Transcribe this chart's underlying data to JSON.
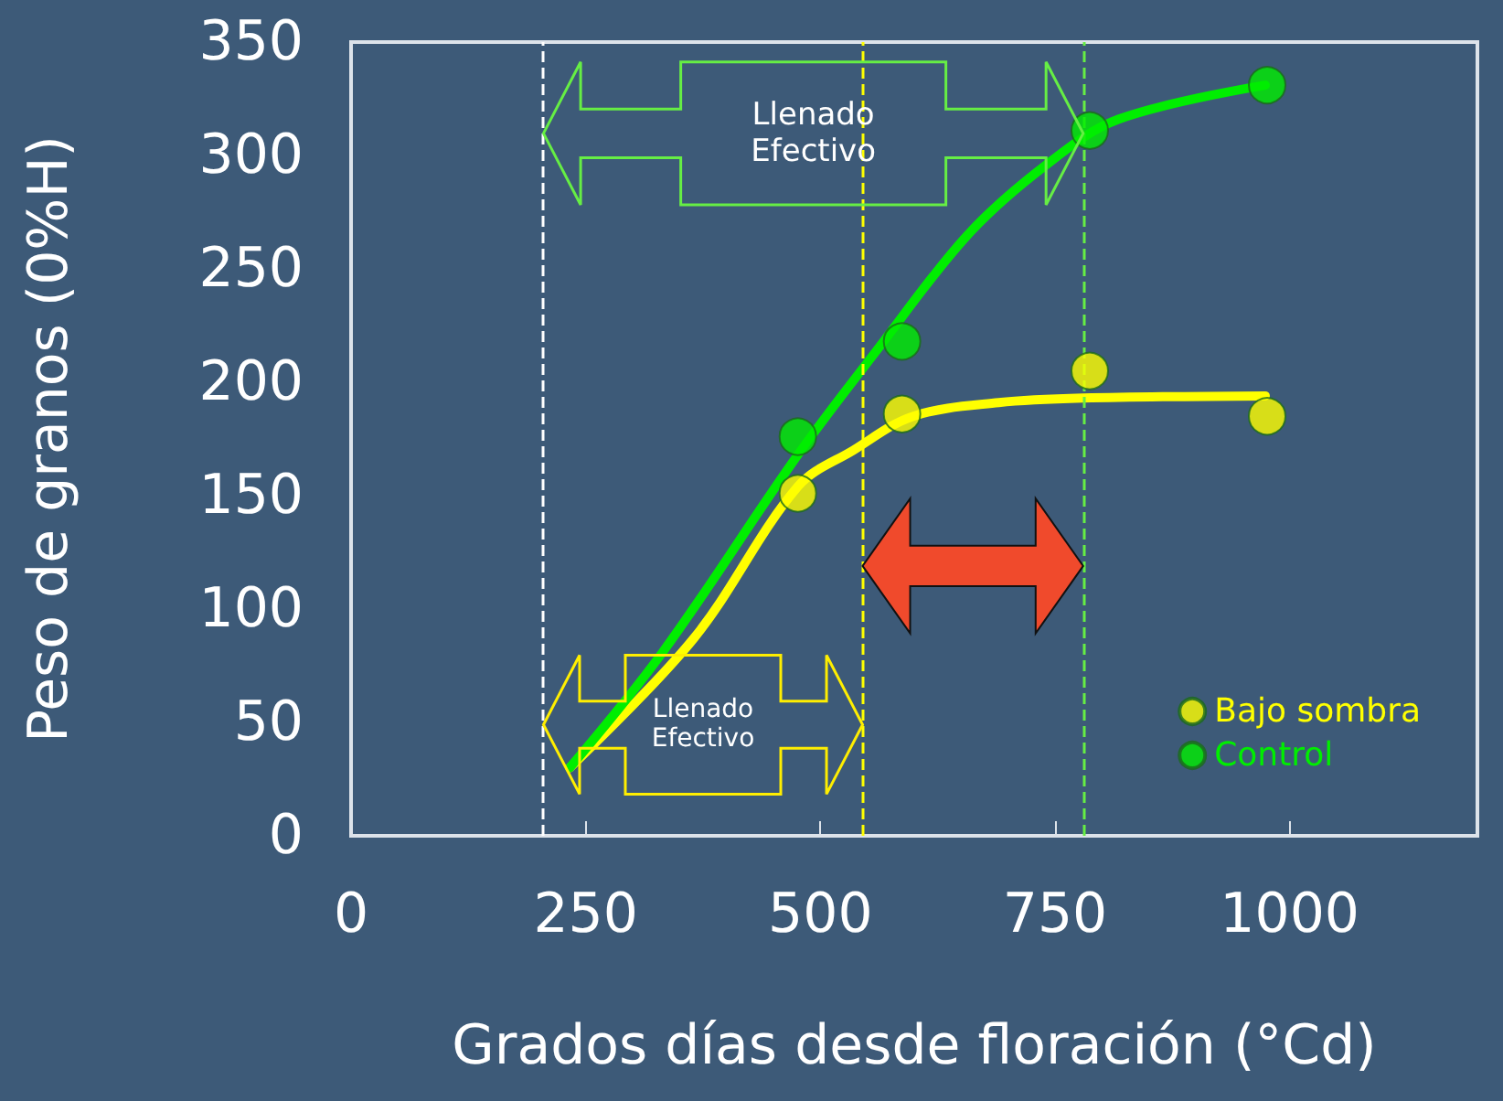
{
  "chart_data": {
    "type": "scatter",
    "xlabel": "Grados días desde floración (°Cd)",
    "ylabel": "Peso de granos (0%H)",
    "xlim": [
      0,
      1200
    ],
    "xticks": [
      0,
      250,
      500,
      750,
      1000
    ],
    "ylim": [
      0,
      350
    ],
    "yticks": [
      0,
      50,
      100,
      150,
      200,
      250,
      300,
      350
    ],
    "grid": false,
    "legend": "bottom right",
    "marker": "circle",
    "series": [
      {
        "name": "Bajo sombra",
        "color": "#ffff00",
        "x": [
          476,
          587,
          787,
          976
        ],
        "values": [
          151,
          186,
          205,
          185
        ]
      },
      {
        "name": "Control",
        "color": "#00ee00",
        "x": [
          476,
          587,
          787,
          976
        ],
        "values": [
          176,
          218,
          311,
          331
        ]
      },
      {
        "type": "line",
        "marker": "none",
        "color": "#ffff00",
        "x": [
          233,
          365,
          476,
          535,
          599,
          690,
          780,
          974
        ],
        "values": [
          30,
          87,
          154,
          170,
          185,
          191,
          193,
          194
        ]
      },
      {
        "type": "line",
        "marker": "none",
        "color": "#00ee00",
        "x": [
          233,
          332,
          476,
          560,
          657,
          741,
          818,
          974
        ],
        "values": [
          30,
          81,
          168,
          214,
          265,
          296,
          316,
          331
        ]
      }
    ],
    "ref_lines": [
      {
        "axis": "x",
        "value": 205,
        "color": "#ffffff",
        "line_style": "dashed"
      },
      {
        "axis": "x",
        "value": 545,
        "color": "#ffff00",
        "line_style": "dashed"
      },
      {
        "axis": "x",
        "value": 780,
        "color": "#66ee44",
        "line_style": "dashed"
      }
    ],
    "annotations": [
      "Llenado\nEfectivo",
      "Llenado\nEfectivo"
    ]
  }
}
